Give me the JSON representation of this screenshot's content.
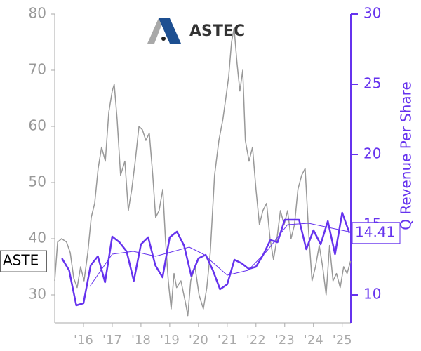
{
  "chart_data": {
    "type": "line",
    "logo": "ASTEC",
    "y2label": "Q Revenue Per Share",
    "xlim": [
      2015.0,
      2025.3
    ],
    "xticks": [
      {
        "value": 2016,
        "label": "'16"
      },
      {
        "value": 2017,
        "label": "'17"
      },
      {
        "value": 2018,
        "label": "'18"
      },
      {
        "value": 2019,
        "label": "'19"
      },
      {
        "value": 2020,
        "label": "'20"
      },
      {
        "value": 2021,
        "label": "'21"
      },
      {
        "value": 2022,
        "label": "'22"
      },
      {
        "value": 2023,
        "label": "'23"
      },
      {
        "value": 2024,
        "label": "'24"
      },
      {
        "value": 2025,
        "label": "'25"
      }
    ],
    "ylim": [
      25,
      80
    ],
    "yticks": [
      30,
      40,
      50,
      60,
      70,
      80
    ],
    "y2lim": [
      8,
      30
    ],
    "y2ticks": [
      10,
      15,
      20,
      25,
      30
    ],
    "series": [
      {
        "axis": "y2",
        "color": "#6633ee",
        "x": [
          2015.25,
          2015.5,
          2015.75,
          2016.0,
          2016.25,
          2016.5,
          2016.75,
          2017.0,
          2017.25,
          2017.5,
          2017.75,
          2018.0,
          2018.25,
          2018.5,
          2018.75,
          2019.0,
          2019.25,
          2019.5,
          2019.75,
          2020.0,
          2020.25,
          2020.5,
          2020.75,
          2021.0,
          2021.25,
          2021.5,
          2021.75,
          2022.0,
          2022.25,
          2022.5,
          2022.75,
          2023.0,
          2023.25,
          2023.5,
          2023.75,
          2024.0,
          2024.25,
          2024.5,
          2024.75,
          2025.0,
          2025.25
        ],
        "values": [
          12.6,
          11.75,
          9.25,
          9.4,
          12.1,
          12.75,
          10.9,
          14.15,
          13.75,
          13.1,
          11.0,
          13.6,
          14.1,
          12.1,
          11.25,
          14.1,
          14.5,
          13.5,
          11.35,
          12.6,
          12.85,
          11.75,
          10.4,
          10.75,
          12.5,
          12.25,
          11.85,
          12.0,
          12.85,
          13.9,
          13.75,
          15.35,
          15.35,
          15.35,
          13.25,
          14.6,
          13.6,
          15.25,
          12.9,
          15.85,
          14.41
        ]
      },
      {
        "axis": "y2",
        "color": "#6633ee",
        "x": [
          2016.22,
          2017.0,
          2017.73,
          2018.51,
          2019.68,
          2020.17,
          2021.0,
          2021.73,
          2022.37,
          2023.1,
          2023.83,
          2025.22
        ],
        "values": [
          10.6,
          12.9,
          13.1,
          12.75,
          13.4,
          12.9,
          11.4,
          11.75,
          13.1,
          15.0,
          15.1,
          14.5
        ]
      },
      {
        "name": "ASTE",
        "axis": "y",
        "color": "#999999",
        "x": [
          2015.0,
          2015.1,
          2015.24,
          2015.41,
          2015.54,
          2015.66,
          2015.78,
          2015.9,
          2016.02,
          2016.15,
          2016.27,
          2016.39,
          2016.51,
          2016.63,
          2016.76,
          2016.88,
          2017.0,
          2017.07,
          2017.17,
          2017.29,
          2017.44,
          2017.56,
          2017.68,
          2017.8,
          2017.93,
          2018.05,
          2018.17,
          2018.29,
          2018.41,
          2018.51,
          2018.63,
          2018.76,
          2018.85,
          2018.95,
          2019.05,
          2019.15,
          2019.24,
          2019.39,
          2019.54,
          2019.63,
          2019.73,
          2019.88,
          2020.02,
          2020.17,
          2020.29,
          2020.41,
          2020.56,
          2020.71,
          2020.85,
          2020.95,
          2021.05,
          2021.15,
          2021.24,
          2021.34,
          2021.44,
          2021.54,
          2021.63,
          2021.76,
          2021.88,
          2022.0,
          2022.12,
          2022.24,
          2022.37,
          2022.49,
          2022.61,
          2022.73,
          2022.85,
          2022.98,
          2023.1,
          2023.22,
          2023.34,
          2023.46,
          2023.59,
          2023.71,
          2023.83,
          2023.95,
          2024.07,
          2024.2,
          2024.32,
          2024.44,
          2024.56,
          2024.68,
          2024.8,
          2024.93,
          2025.05,
          2025.17,
          2025.29
        ],
        "values": [
          32.5,
          39.4,
          40,
          39.4,
          37.5,
          33,
          31.3,
          35,
          32.5,
          37.5,
          43.8,
          46.3,
          52.5,
          56.3,
          53.8,
          62.5,
          66.3,
          67.5,
          61.3,
          51.3,
          53.8,
          45,
          48.8,
          53.8,
          60,
          59.4,
          57.5,
          58.8,
          51.3,
          43.8,
          45,
          48.8,
          40,
          32.5,
          27.5,
          33.8,
          31.3,
          32.5,
          28.8,
          26.3,
          32.5,
          35,
          30,
          27.5,
          31.3,
          37.5,
          51.3,
          57.5,
          61.3,
          65,
          68.8,
          75,
          77.5,
          71.3,
          66.3,
          70,
          57.5,
          53.8,
          56.3,
          48.8,
          42.5,
          45,
          46.3,
          40,
          36.3,
          40,
          45,
          42.5,
          45,
          40,
          42.5,
          48.8,
          51.3,
          52.5,
          41.3,
          32.5,
          35,
          38.8,
          35,
          30,
          38.8,
          32.5,
          33.8,
          31.3,
          35,
          33.8,
          36
        ]
      }
    ]
  }
}
